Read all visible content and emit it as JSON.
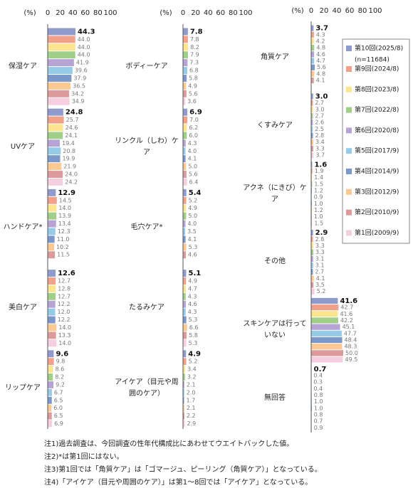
{
  "chart_data": [
    {
      "type": "bar",
      "orientation": "horizontal",
      "unit_label": "(%)",
      "xlim": [
        0,
        100
      ],
      "xticks": [
        0,
        20,
        40,
        60,
        80,
        100
      ],
      "categories": [
        "保湿ケア",
        "UVケア",
        "ハンドケア*",
        "美白ケア",
        "リップケア"
      ],
      "series": [
        {
          "color": "#8e9bcc",
          "values": [
            44.3,
            24.8,
            12.9,
            12.6,
            9.6
          ],
          "value_labels": [
            "44.3",
            "24.8",
            "12.9",
            "12.6",
            "9.6"
          ]
        },
        {
          "color": "#f1a08a",
          "values": [
            44.0,
            25.7,
            14.5,
            12.7,
            9.8
          ],
          "value_labels": [
            "44.0",
            "25.7",
            "14.5",
            "12.7",
            "9.8"
          ]
        },
        {
          "color": "#fde58f",
          "values": [
            44.0,
            24.6,
            14.0,
            12.8,
            8.6
          ],
          "value_labels": [
            "44.0",
            "24.6",
            "14.0",
            "12.8",
            "8.6"
          ]
        },
        {
          "color": "#9fcf88",
          "values": [
            44.0,
            24.1,
            13.9,
            12.7,
            8.2
          ],
          "value_labels": [
            "44.0",
            "24.1",
            "13.9",
            "12.7",
            "8.2"
          ]
        },
        {
          "color": "#b8a4d4",
          "values": [
            41.9,
            19.4,
            13.4,
            12.2,
            9.2
          ],
          "value_labels": [
            "41.9",
            "19.4",
            "13.4",
            "12.2",
            "9.2"
          ]
        },
        {
          "color": "#95cbe6",
          "values": [
            39.6,
            20.8,
            12.3,
            12.0,
            6.7
          ],
          "value_labels": [
            "39.6",
            "20.8",
            "12.3",
            "12.0",
            "6.7"
          ]
        },
        {
          "color": "#7a98c9",
          "values": [
            37.9,
            19.9,
            11.0,
            12.2,
            6.5
          ],
          "value_labels": [
            "37.9",
            "19.9",
            "11.0",
            "12.2",
            "6.5"
          ]
        },
        {
          "color": "#fcc993",
          "values": [
            36.5,
            21.9,
            10.2,
            14.0,
            6.0
          ],
          "value_labels": [
            "36.5",
            "21.9",
            "10.2",
            "14.0",
            "6.0"
          ]
        },
        {
          "color": "#dd9a9a",
          "values": [
            34.2,
            24.0,
            11.5,
            13.3,
            6.5
          ],
          "value_labels": [
            "34.2",
            "24.0",
            "11.5",
            "13.3",
            "6.5"
          ]
        },
        {
          "color": "#f5cfe0",
          "values": [
            34.9,
            24.2,
            null,
            14.0,
            6.9
          ],
          "value_labels": [
            "34.9",
            "24.2",
            null,
            "14.0",
            "6.9"
          ]
        }
      ]
    },
    {
      "type": "bar",
      "orientation": "horizontal",
      "unit_label": "(%)",
      "xlim": [
        0,
        100
      ],
      "xticks": [
        0,
        20,
        40,
        60,
        80,
        100
      ],
      "categories": [
        "ボディーケア",
        "リンクル（しわ）ケア",
        "毛穴ケア*",
        "たるみケア",
        "アイケア（目元や周囲のケア）"
      ],
      "series": [
        {
          "color": "#8e9bcc",
          "values": [
            7.8,
            6.9,
            5.4,
            5.1,
            4.9
          ],
          "value_labels": [
            "7.8",
            "6.9",
            "5.4",
            "5.1",
            "4.9"
          ]
        },
        {
          "color": "#f1a08a",
          "values": [
            7.8,
            7.0,
            5.2,
            4.9,
            5.2
          ],
          "value_labels": [
            "7.8",
            "7.0",
            "5.2",
            "4.9",
            "5.2"
          ]
        },
        {
          "color": "#fde58f",
          "values": [
            8.2,
            6.2,
            4.9,
            4.7,
            3.4
          ],
          "value_labels": [
            "8.2",
            "6.2",
            "4.9",
            "4.7",
            "3.4"
          ]
        },
        {
          "color": "#9fcf88",
          "values": [
            7.9,
            6.0,
            5.0,
            4.3,
            3.2
          ],
          "value_labels": [
            "7.9",
            "6.0",
            "5.0",
            "4.3",
            "3.2"
          ]
        },
        {
          "color": "#b8a4d4",
          "values": [
            7.3,
            4.3,
            4.0,
            4.6,
            2.1
          ],
          "value_labels": [
            "7.3",
            "4.3",
            "4.0",
            "4.6",
            "2.1"
          ]
        },
        {
          "color": "#95cbe6",
          "values": [
            6.8,
            4.0,
            3.5,
            4.3,
            2.0
          ],
          "value_labels": [
            "6.8",
            "4.0",
            "3.5",
            "4.3",
            "2.0"
          ]
        },
        {
          "color": "#7a98c9",
          "values": [
            5.8,
            4.1,
            4.1,
            5.3,
            1.7
          ],
          "value_labels": [
            "5.8",
            "4.1",
            "4.1",
            "5.3",
            "1.7"
          ]
        },
        {
          "color": "#fcc993",
          "values": [
            4.9,
            5.0,
            5.3,
            6.6,
            2.1
          ],
          "value_labels": [
            "4.9",
            "5.0",
            "5.3",
            "6.6",
            "2.1"
          ]
        },
        {
          "color": "#dd9a9a",
          "values": [
            5.6,
            5.6,
            4.6,
            5.8,
            2.2
          ],
          "value_labels": [
            "5.6",
            "5.6",
            "4.6",
            "5.8",
            "2.2"
          ]
        },
        {
          "color": "#f5cfe0",
          "values": [
            3.6,
            6.4,
            null,
            5.3,
            2.9
          ],
          "value_labels": [
            "3.6",
            "6.4",
            null,
            "5.3",
            "2.9"
          ]
        }
      ]
    },
    {
      "type": "bar",
      "orientation": "horizontal",
      "unit_label": "(%)",
      "xlim": [
        0,
        100
      ],
      "xticks": [
        0,
        20,
        40,
        60,
        80,
        100
      ],
      "categories": [
        "角質ケア",
        "くすみケア",
        "アクネ（にきび）ケア",
        "その他",
        "スキンケアは行っていない",
        "無回答"
      ],
      "series": [
        {
          "name": "第10回(2025/8)",
          "sample_size": "(n=11684)",
          "color": "#8e9bcc",
          "values": [
            3.7,
            3.0,
            1.6,
            2.9,
            41.6,
            0.7
          ],
          "value_labels": [
            "3.7",
            "3.0",
            "1.6",
            "2.9",
            "41.6",
            "0.7"
          ]
        },
        {
          "name": "第9回(2024/8)",
          "color": "#f1a08a",
          "values": [
            4.3,
            2.7,
            1.9,
            2.8,
            42.7,
            0.4
          ],
          "value_labels": [
            "4.3",
            "2.7",
            "1.9",
            "2.8",
            "42.7",
            "0.4"
          ]
        },
        {
          "name": "第8回(2023/8)",
          "color": "#fde58f",
          "values": [
            4.2,
            3.0,
            1.4,
            3.3,
            41.6,
            0.3
          ],
          "value_labels": [
            "4.2",
            "3.0",
            "1.4",
            "3.3",
            "41.6",
            "0.3"
          ]
        },
        {
          "name": "第7回(2022/8)",
          "color": "#9fcf88",
          "values": [
            4.8,
            2.7,
            1.5,
            3.3,
            42.2,
            0.4
          ],
          "value_labels": [
            "4.8",
            "2.7",
            "1.5",
            "3.3",
            "42.2",
            "0.4"
          ]
        },
        {
          "name": "第6回(2020/8)",
          "color": "#b8a4d4",
          "values": [
            4.6,
            2.6,
            1.2,
            3.1,
            45.1,
            0.8
          ],
          "value_labels": [
            "4.6",
            "2.6",
            "1.2",
            "3.1",
            "45.1",
            "0.8"
          ]
        },
        {
          "name": "第5回(2017/9)",
          "color": "#95cbe6",
          "values": [
            4.7,
            2.5,
            0.9,
            3.1,
            47.7,
            1.0
          ],
          "value_labels": [
            "4.7",
            "2.5",
            "0.9",
            "3.1",
            "47.7",
            "1.0"
          ]
        },
        {
          "name": "第4回(2014/9)",
          "color": "#7a98c9",
          "values": [
            5.6,
            2.8,
            1.0,
            2.7,
            48.4,
            1.0
          ],
          "value_labels": [
            "5.6",
            "2.8",
            "1.0",
            "2.7",
            "48.4",
            "1.0"
          ]
        },
        {
          "name": "第3回(2012/9)",
          "color": "#fcc993",
          "values": [
            4.8,
            3.4,
            1.2,
            4.1,
            48.3,
            0.8
          ],
          "value_labels": [
            "4.8",
            "3.4",
            "1.2",
            "4.1",
            "48.3",
            "0.8"
          ]
        },
        {
          "name": "第2回(2010/9)",
          "color": "#dd9a9a",
          "values": [
            4.1,
            3.3,
            1.0,
            3.5,
            50.0,
            0.7
          ],
          "value_labels": [
            "4.1",
            "3.3",
            "1.0",
            "3.5",
            "50.0",
            "0.7"
          ]
        },
        {
          "name": "第1回(2009/9)",
          "color": "#f5cfe0",
          "values": [
            null,
            3.7,
            1.5,
            5.2,
            49.5,
            0.9
          ],
          "value_labels": [
            null,
            "3.7",
            "1.5",
            "5.2",
            "49.5",
            "0.9"
          ]
        }
      ]
    }
  ],
  "notes": [
    "注1)過去調査は、今回調査の性年代構成比にあわせてウエイトバックした値。",
    "注2)*は第1回にはない。",
    "注3)第1回では「角質ケア」は「ゴマージュ、ピーリング（角質ケア）」となっている。",
    "注4)「アイケア（目元や周囲のケア）」は第1～8回では「アイケア」となっている。"
  ]
}
